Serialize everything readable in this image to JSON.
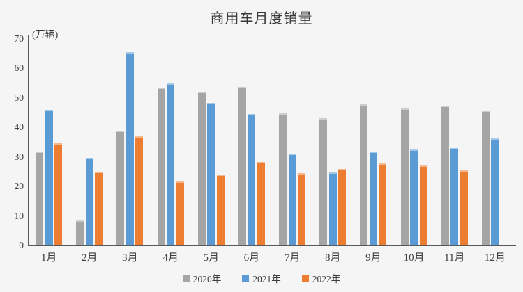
{
  "chart_data": {
    "type": "bar",
    "title": "商用车月度销量",
    "unit_label": "(万辆)",
    "xlabel": "",
    "ylabel": "万辆",
    "ylim": [
      0,
      70
    ],
    "y_tick_interval": 10,
    "y_tick_labels": [
      "0",
      "10",
      "20",
      "30",
      "40",
      "50",
      "60",
      "70"
    ],
    "grid": false,
    "legend_position": "bottom",
    "categories": [
      "1月",
      "2月",
      "3月",
      "4月",
      "5月",
      "6月",
      "7月",
      "8月",
      "9月",
      "10月",
      "11月",
      "12月"
    ],
    "series": [
      {
        "name": "2020年",
        "color": "#A5A5A5",
        "values": [
          31.9,
          8.6,
          39.0,
          53.5,
          52.0,
          53.7,
          44.8,
          43.1,
          47.8,
          46.5,
          47.4,
          45.7
        ]
      },
      {
        "name": "2021年",
        "color": "#5B9BD5",
        "values": [
          45.9,
          29.8,
          65.5,
          55.0,
          48.3,
          44.6,
          31.2,
          24.8,
          31.8,
          32.6,
          33.1,
          36.4
        ]
      },
      {
        "name": "2022年",
        "color": "#ED7D31",
        "values": [
          34.6,
          25.0,
          37.0,
          21.7,
          24.0,
          28.2,
          24.6,
          25.9,
          27.8,
          27.2,
          25.4,
          null
        ]
      }
    ],
    "axis_color": "#595959",
    "text_color": "#3d3d3d",
    "background_color": "#F5F5F5"
  }
}
